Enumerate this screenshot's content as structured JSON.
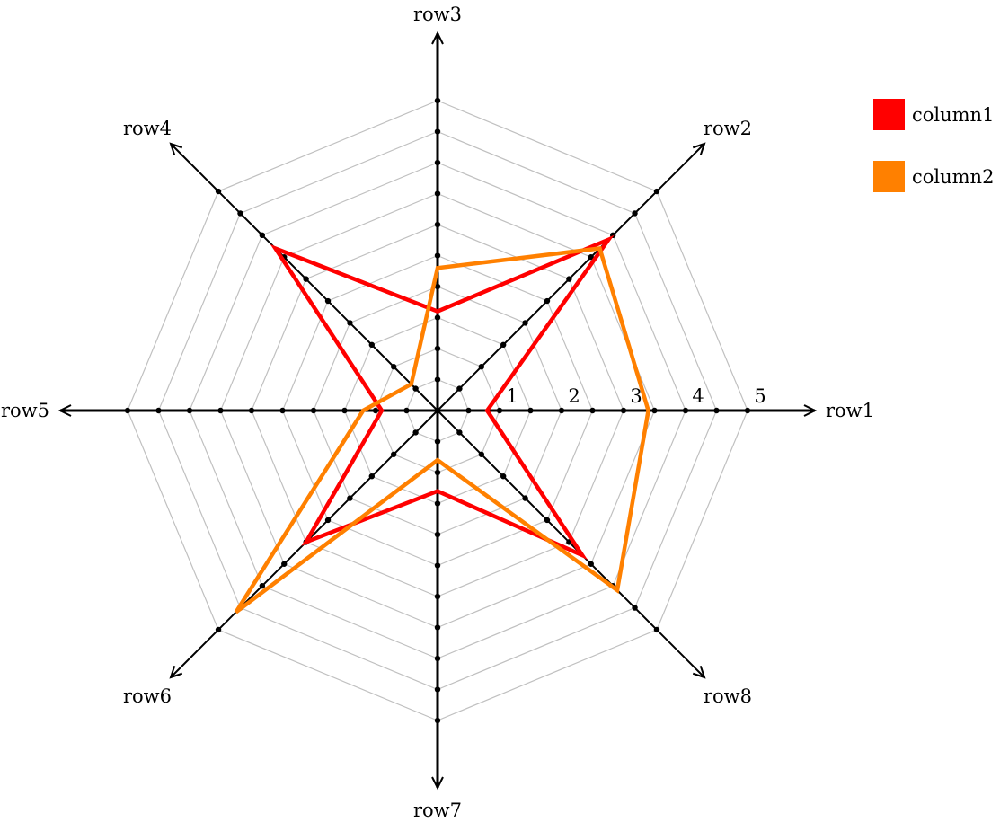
{
  "chart_data": {
    "type": "radar",
    "categories": [
      "row1",
      "row2",
      "row3",
      "row4",
      "row5",
      "row6",
      "row7",
      "row8"
    ],
    "rlim": [
      0,
      5
    ],
    "minor_step": 0.5,
    "tick_labels": [
      "1",
      "2",
      "3",
      "4",
      "5"
    ],
    "series": [
      {
        "name": "column1",
        "color": "#ff0000",
        "values": [
          0.8,
          3.9,
          1.6,
          3.7,
          0.9,
          3.0,
          1.3,
          3.3
        ]
      },
      {
        "name": "column2",
        "color": "#ff8000",
        "values": [
          3.4,
          3.7,
          2.3,
          0.6,
          1.2,
          4.6,
          0.8,
          4.1
        ]
      }
    ],
    "grid": true,
    "legend": "top-right"
  }
}
